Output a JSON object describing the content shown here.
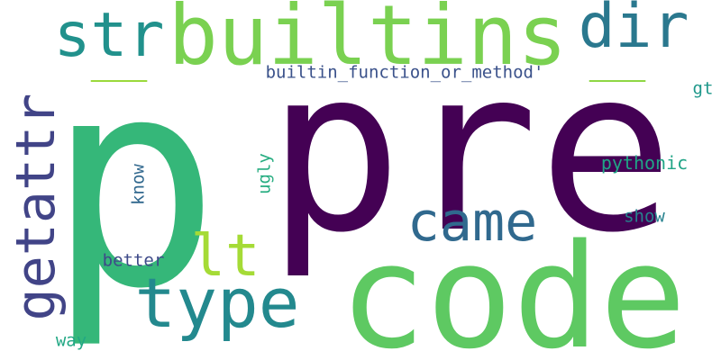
{
  "words": [
    {
      "text": "p",
      "color": "#35b779"
    },
    {
      "text": "pre",
      "color": "#440154"
    },
    {
      "text": "code",
      "color": "#5ec962"
    },
    {
      "text": "builtins",
      "color": "#7ad151"
    },
    {
      "text": "str",
      "color": "#21918c"
    },
    {
      "text": "dir",
      "color": "#2a788e"
    },
    {
      "text": "__",
      "color": "#9bd93c"
    },
    {
      "text": "__",
      "color": "#8fd744"
    },
    {
      "text": "getattr",
      "color": "#414487"
    },
    {
      "text": "type",
      "color": "#23898e"
    },
    {
      "text": "came",
      "color": "#30698e"
    },
    {
      "text": "lt",
      "color": "#a5db36"
    },
    {
      "text": "builtin_function_or_method'",
      "color": "#3b528b"
    },
    {
      "text": "gt",
      "color": "#1f988b"
    },
    {
      "text": "pythonic",
      "color": "#20a486"
    },
    {
      "text": "ugly",
      "color": "#27ad81"
    },
    {
      "text": "know",
      "color": "#31688e"
    },
    {
      "text": "show",
      "color": "#26828e"
    },
    {
      "text": "better",
      "color": "#3e4a89"
    },
    {
      "text": "way",
      "color": "#22a884"
    }
  ]
}
